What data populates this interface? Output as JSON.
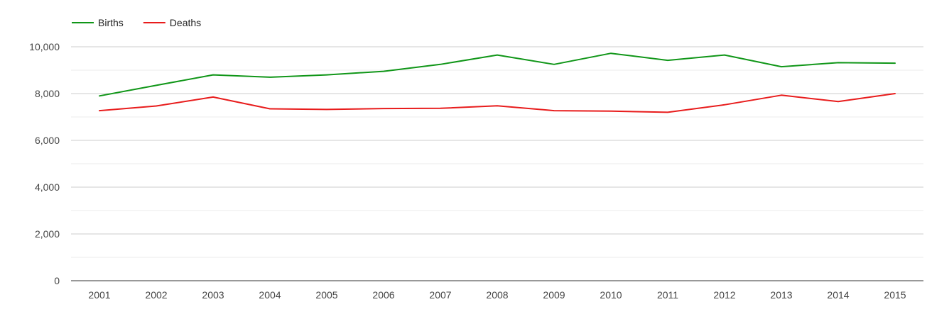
{
  "chart_data": {
    "type": "line",
    "title": "",
    "xlabel": "",
    "ylabel": "",
    "x": [
      "2001",
      "2002",
      "2003",
      "2004",
      "2005",
      "2006",
      "2007",
      "2008",
      "2009",
      "2010",
      "2011",
      "2012",
      "2013",
      "2014",
      "2015"
    ],
    "ylim": [
      0,
      10000
    ],
    "yticks": [
      0,
      2000,
      4000,
      6000,
      8000,
      10000
    ],
    "ytick_labels": [
      "0",
      "2,000",
      "4,000",
      "6,000",
      "8,000",
      "10,000"
    ],
    "grid": true,
    "legend_position": "top-left",
    "series": [
      {
        "name": "Births",
        "color": "#109618",
        "values": [
          7900,
          8350,
          8800,
          8700,
          8800,
          8950,
          9250,
          9650,
          9250,
          9720,
          9420,
          9650,
          9150,
          9320,
          9300
        ]
      },
      {
        "name": "Deaths",
        "color": "#e81c1c",
        "values": [
          7270,
          7470,
          7850,
          7350,
          7320,
          7360,
          7370,
          7480,
          7270,
          7250,
          7200,
          7520,
          7930,
          7660,
          8000
        ]
      }
    ]
  }
}
